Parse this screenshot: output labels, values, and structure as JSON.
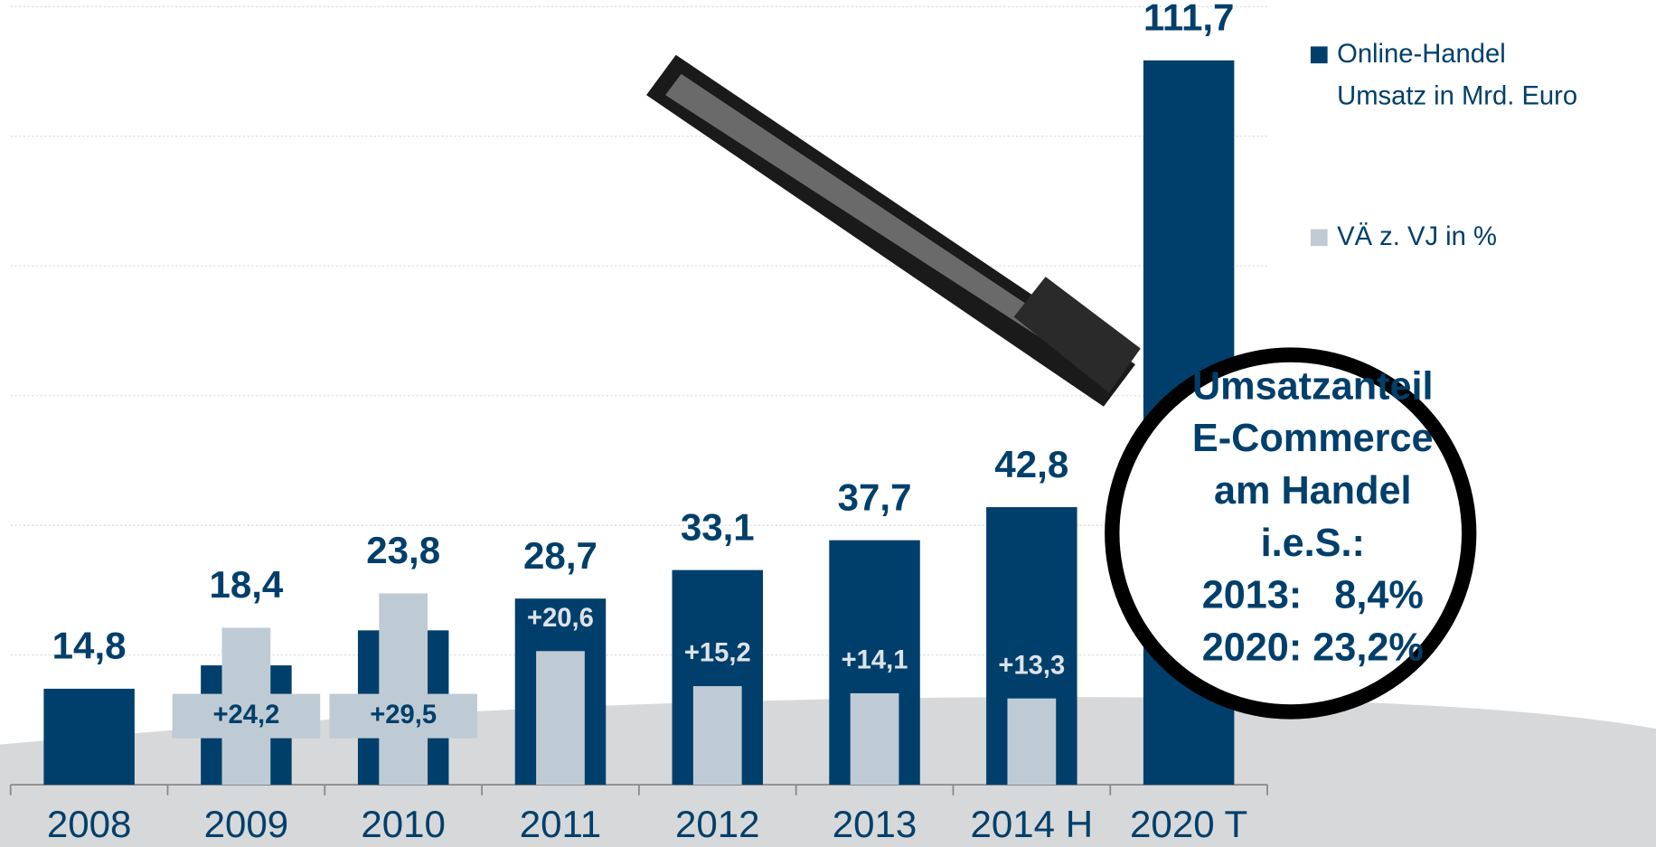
{
  "chart_data": {
    "type": "bar",
    "categories": [
      "2008",
      "2009",
      "2010",
      "2011",
      "2012",
      "2013",
      "2014 H",
      "2020 T"
    ],
    "series": [
      {
        "name": "Online-Handel\nUmsatz in Mrd. Euro",
        "color": "#003f6b",
        "values": [
          14.8,
          18.4,
          23.8,
          28.7,
          33.1,
          37.7,
          42.8,
          111.7
        ],
        "value_labels": [
          "14,8",
          "18,4",
          "23,8",
          "28,7",
          "33,1",
          "37,7",
          "42,8",
          "111,7"
        ]
      },
      {
        "name": "VÄ z. VJ in %",
        "color": "#bfcbd4",
        "values": [
          null,
          24.2,
          29.5,
          20.6,
          15.2,
          14.1,
          13.3,
          null
        ],
        "value_labels": [
          null,
          "+24,2",
          "+29,5",
          "+20,6",
          "+15,2",
          "+14,1",
          "+13,3",
          null
        ]
      }
    ],
    "ylim": [
      0,
      120
    ],
    "yticks": [
      20,
      40,
      60,
      80,
      100,
      120
    ],
    "grid": true,
    "legend": "top-right",
    "annotation": [
      "Umsatzanteil",
      "E-Commerce",
      "am Handel",
      "i.e.S.:",
      "2013:   8,4%",
      "2020: 23,2%"
    ]
  }
}
